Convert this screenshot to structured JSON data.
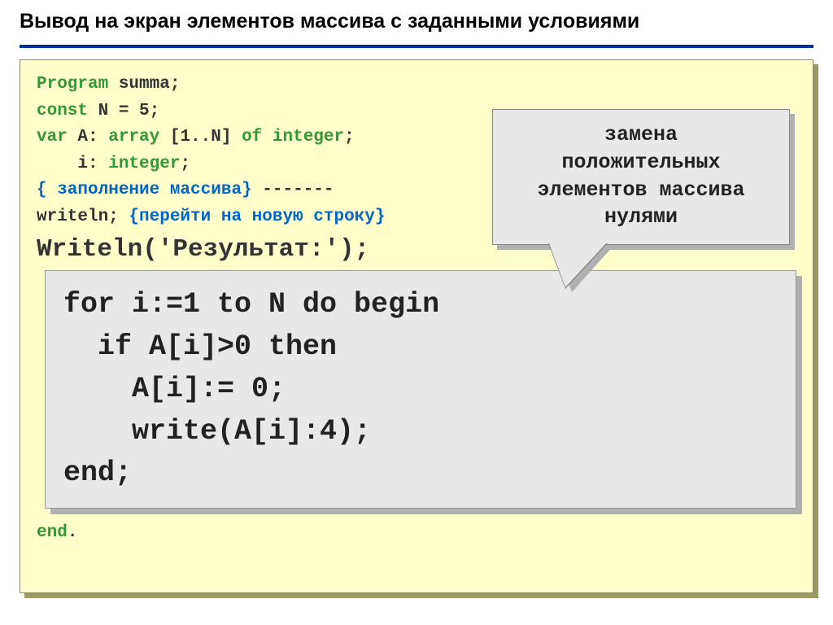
{
  "title": "Вывод на экран элементов массива с заданными условиями",
  "colors": {
    "title_underline": "#003399",
    "panel_bg": "#ffffcc",
    "panel_shadow": "#9a9a66",
    "inner_bg": "#e8e8e8",
    "inner_shadow": "#b0b0b0",
    "keyword": "#339933",
    "comment": "#0066cc",
    "text": "#333333"
  },
  "code": {
    "l1_kw": "Program",
    "l1_rest": " summa;",
    "l2_kw": "const",
    "l2_rest": " N = 5;",
    "l3_kw1": "var",
    "l3_mid": " A: ",
    "l3_kw2": "array",
    "l3_mid2": " [1..N] ",
    "l3_kw3": "of integer",
    "l3_end": ";",
    "l4_pad": "    i: ",
    "l4_kw": "integer",
    "l4_end": ";",
    "l5_comment": "{ заполнение массива}",
    "l5_dashes": " -------",
    "l6_writeln": "writeln; ",
    "l6_comment": "{перейти на новую строку}",
    "l7_writeln_big": "Writeln('Результат:');",
    "end_kw": "end",
    "end_dot": "."
  },
  "inner": {
    "l1": "for i:=1 to N do begin",
    "l2": "  if A[i]>0 then",
    "l3": "    A[i]:= 0;",
    "l4": "    write(A[i]:4);",
    "l5": "end;"
  },
  "callout": {
    "line1": "замена",
    "line2": "положительных",
    "line3": "элементов массива",
    "line4": "нулями"
  }
}
